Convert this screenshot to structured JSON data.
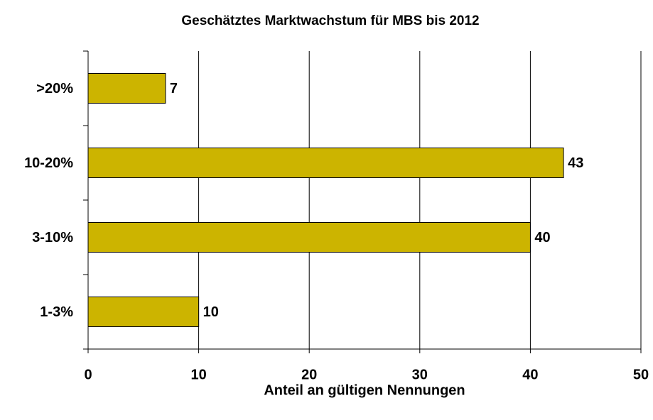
{
  "chart_data": {
    "type": "bar",
    "orientation": "horizontal",
    "title": "Geschätztes Marktwachstum für MBS bis 2012",
    "xlabel": "Anteil an gültigen Nennungen",
    "categories": [
      ">20%",
      "10-20%",
      "3-10%",
      "1-3%"
    ],
    "values": [
      7,
      43,
      40,
      10
    ],
    "color": "#ccb400",
    "xlim": [
      0,
      50
    ],
    "xticks": [
      0,
      10,
      20,
      30,
      40,
      50
    ],
    "grid": true
  }
}
